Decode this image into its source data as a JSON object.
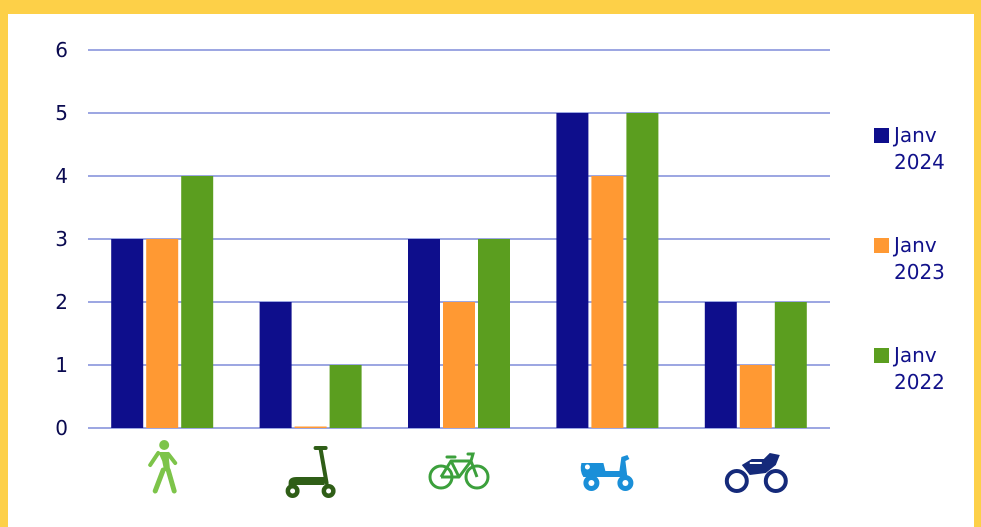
{
  "chart_data": {
    "type": "bar",
    "categories": [
      "walking-person-icon",
      "kick-scooter-icon",
      "bicycle-icon",
      "motor-scooter-icon",
      "motorcycle-icon"
    ],
    "series": [
      {
        "name": "Janv 2024",
        "color": "#0E0E8C",
        "values": [
          3,
          2,
          3,
          5,
          2
        ]
      },
      {
        "name": "Janv 2023",
        "color": "#FF9933",
        "values": [
          3,
          0,
          2,
          4,
          1
        ]
      },
      {
        "name": "Janv 2022",
        "color": "#5B9E1F",
        "values": [
          4,
          1,
          3,
          5,
          2
        ]
      }
    ],
    "y_ticks": [
      "0",
      "1",
      "2",
      "3",
      "4",
      "5",
      "6"
    ],
    "ylim": [
      0,
      6
    ],
    "grid": true,
    "legend_position": "right",
    "icon_colors": [
      "#7DC44A",
      "#2F5E17",
      "#3CA03C",
      "#1A8FD8",
      "#152A7A"
    ]
  },
  "legend": {
    "items": [
      {
        "line1": "Janv",
        "line2": "2024",
        "color": "#0E0E8C"
      },
      {
        "line1": "Janv",
        "line2": "2023",
        "color": "#FF9933"
      },
      {
        "line1": "Janv",
        "line2": "2022",
        "color": "#5B9E1F"
      }
    ]
  }
}
